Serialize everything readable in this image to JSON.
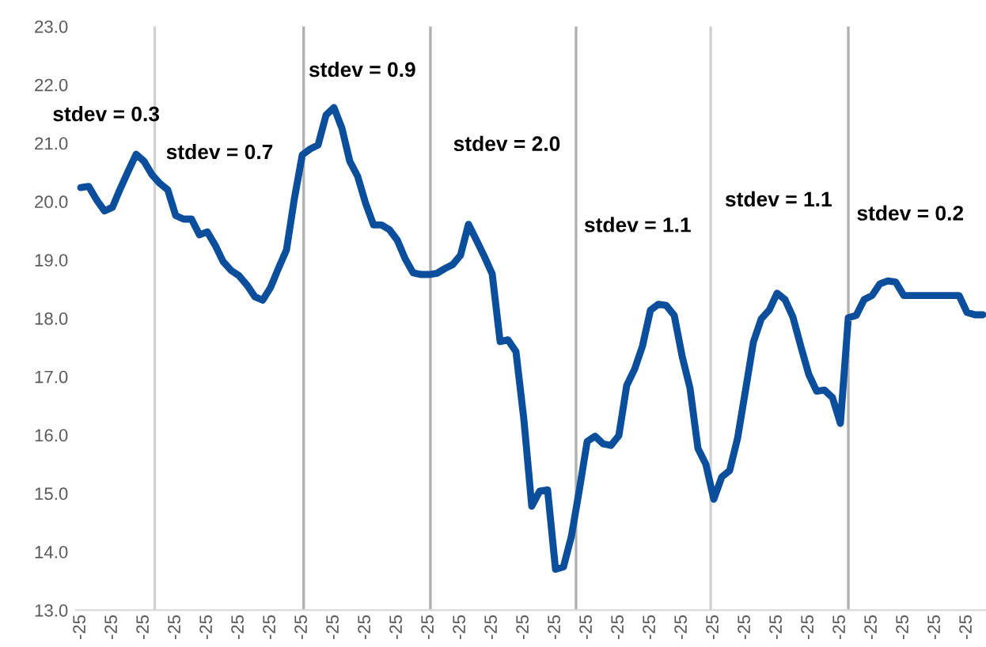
{
  "chart_data": {
    "type": "line",
    "categories": [
      "-25",
      null,
      null,
      null,
      "-25",
      null,
      null,
      null,
      "-25",
      null,
      null,
      null,
      "-25",
      null,
      null,
      null,
      "-25",
      null,
      null,
      null,
      "-25",
      null,
      null,
      null,
      "-25",
      null,
      null,
      null,
      "-25",
      null,
      null,
      null,
      "-25",
      null,
      null,
      null,
      "-25",
      null,
      null,
      null,
      "-25",
      null,
      null,
      null,
      "-25",
      null,
      null,
      null,
      "-25",
      null,
      null,
      null,
      "-25",
      null,
      null,
      null,
      "-25",
      null,
      null,
      null,
      "-25",
      null,
      null,
      null,
      "-25",
      null,
      null,
      null,
      "-25",
      null,
      null,
      null,
      "-25",
      null,
      null,
      null,
      "-25",
      null,
      null,
      null,
      "-25",
      null,
      null,
      null,
      "-25",
      null,
      null,
      null,
      "-25",
      null,
      null,
      null,
      "-25",
      null,
      null,
      null,
      "-25",
      null,
      null,
      null,
      "-25",
      null,
      null,
      null,
      "-25",
      null,
      null,
      null,
      "-25",
      null,
      null,
      null,
      "-25",
      null,
      null
    ],
    "series": [
      {
        "color": "#0b4f9c",
        "values": [
          20.24,
          20.26,
          20.03,
          19.84,
          19.9,
          20.22,
          20.52,
          20.81,
          20.69,
          20.46,
          20.31,
          20.2,
          19.76,
          19.7,
          19.7,
          19.43,
          19.48,
          19.25,
          18.97,
          18.82,
          18.73,
          18.57,
          18.37,
          18.31,
          18.53,
          18.86,
          19.17,
          20.05,
          20.8,
          20.9,
          20.97,
          21.48,
          21.61,
          21.26,
          20.69,
          20.43,
          19.97,
          19.6,
          19.6,
          19.52,
          19.34,
          19.02,
          18.78,
          18.75,
          18.75,
          18.77,
          18.85,
          18.92,
          19.08,
          19.61,
          19.34,
          19.06,
          18.76,
          17.6,
          17.63,
          17.43,
          16.27,
          14.78,
          15.04,
          15.06,
          13.7,
          13.74,
          14.26,
          15.05,
          15.89,
          15.98,
          15.85,
          15.82,
          15.99,
          16.85,
          17.13,
          17.53,
          18.14,
          18.24,
          18.22,
          18.05,
          17.35,
          16.8,
          15.77,
          15.5,
          14.9,
          15.28,
          15.39,
          15.94,
          16.76,
          17.59,
          17.99,
          18.14,
          18.43,
          18.32,
          18.02,
          17.52,
          17.04,
          16.75,
          16.77,
          16.64,
          16.2,
          18.01,
          18.05,
          18.32,
          18.39,
          18.59,
          18.64,
          18.62,
          18.39,
          18.39,
          18.39,
          18.39,
          18.39,
          18.39,
          18.39,
          18.39,
          18.1,
          18.06,
          18.06
        ]
      }
    ],
    "ylim": [
      13.0,
      23.0
    ],
    "yticks": [
      {
        "value": 13,
        "label": "13.0"
      },
      {
        "value": 14,
        "label": "14.0"
      },
      {
        "value": 15,
        "label": "15.0"
      },
      {
        "value": 16,
        "label": "16.0"
      },
      {
        "value": 17,
        "label": "17.0"
      },
      {
        "value": 18,
        "label": "18.0"
      },
      {
        "value": 19,
        "label": "19.0"
      },
      {
        "value": 20,
        "label": "20.0"
      },
      {
        "value": 21,
        "label": "21.0"
      },
      {
        "value": 22,
        "label": "22.0"
      },
      {
        "value": 23,
        "label": "23.0"
      }
    ],
    "annotations": [
      "stdev = 0.3",
      "stdev = 0.7",
      "stdev = 0.9",
      "stdev = 2.0",
      "stdev = 1.1",
      "stdev = 1.1",
      "stdev = 0.2"
    ],
    "grid": false,
    "legend": false,
    "line_style": "solid",
    "marker": "none"
  }
}
